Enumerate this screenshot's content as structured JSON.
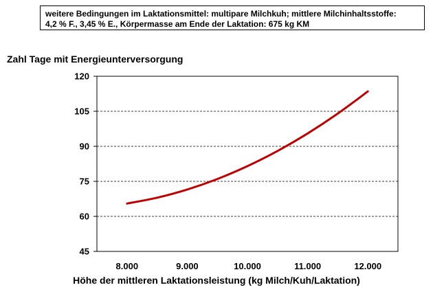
{
  "note": {
    "line1": "weitere Bedingungen im Laktationsmittel:  multipare Milchkuh; mittlere  Milchinhaltsstoffe:",
    "line2": "4,2 % F., 3,45 % E., Körpermasse am Ende der Laktation: 675 kg KM"
  },
  "chart_data": {
    "type": "line",
    "title": "",
    "ylabel": "Zahl Tage mit Energieunterversorgung",
    "xlabel": "Höhe der mittleren Laktationsleistung (kg Milch/Kuh/Laktation)",
    "xlim": [
      7500,
      12500
    ],
    "ylim": [
      45,
      120
    ],
    "x_ticks": [
      8000,
      9000,
      10000,
      11000,
      12000
    ],
    "x_tick_labels": [
      "8.000",
      "9.000",
      "10.000",
      "11.000",
      "12.000"
    ],
    "y_ticks": [
      45,
      60,
      75,
      90,
      105,
      120
    ],
    "y_tick_labels": [
      "45",
      "60",
      "75",
      "90",
      "105",
      "120"
    ],
    "grid": "horizontal dashed",
    "legend": "none",
    "series": [
      {
        "color": "#c00000",
        "x": [
          8000,
          8500,
          9000,
          9500,
          10000,
          10500,
          11000,
          11500,
          12000
        ],
        "y": [
          65.5,
          68,
          71.5,
          76,
          81.5,
          88,
          95.5,
          104,
          113.5
        ]
      }
    ]
  }
}
